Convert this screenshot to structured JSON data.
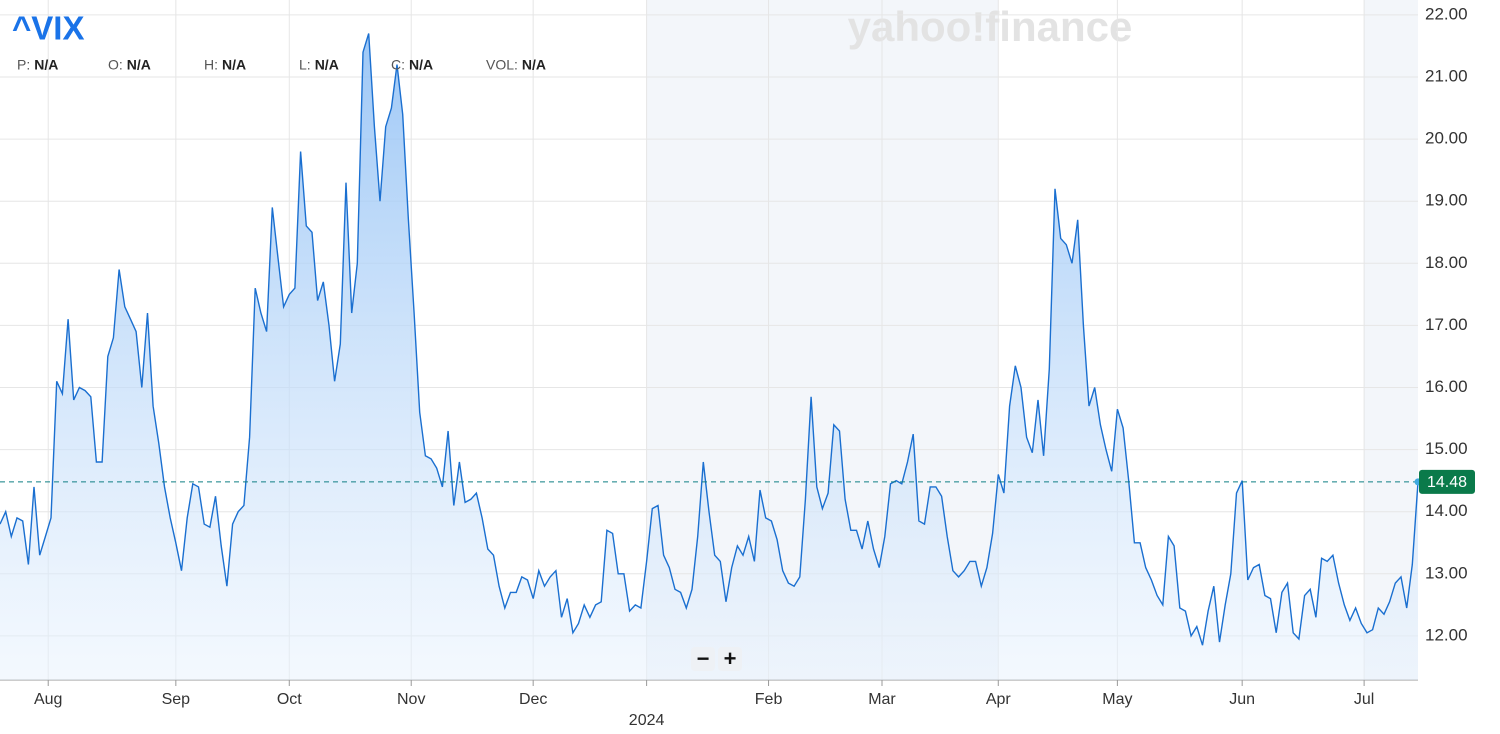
{
  "chart_data": {
    "type": "area",
    "title": "^VIX",
    "watermark": "yahoo!finance",
    "ohlc": [
      {
        "label": "P:",
        "value": "N/A"
      },
      {
        "label": "O:",
        "value": "N/A"
      },
      {
        "label": "H:",
        "value": "N/A"
      },
      {
        "label": "L:",
        "value": "N/A"
      },
      {
        "label": "C:",
        "value": "N/A"
      },
      {
        "label": "VOL:",
        "value": "N/A"
      }
    ],
    "color": "#1a6fd0",
    "values": [
      13.8,
      14.0,
      13.6,
      13.9,
      13.85,
      13.15,
      14.4,
      13.3,
      13.6,
      13.9,
      16.1,
      15.9,
      17.1,
      15.8,
      16.0,
      15.95,
      15.85,
      14.8,
      14.8,
      16.5,
      16.8,
      17.9,
      17.3,
      17.1,
      16.9,
      16.0,
      17.2,
      15.7,
      15.1,
      14.4,
      13.9,
      13.5,
      13.05,
      13.9,
      14.45,
      14.4,
      13.8,
      13.75,
      14.25,
      13.45,
      12.8,
      13.8,
      14.0,
      14.1,
      15.2,
      17.6,
      17.2,
      16.9,
      18.9,
      18.1,
      17.3,
      17.5,
      17.6,
      19.8,
      18.6,
      18.5,
      17.4,
      17.7,
      17.0,
      16.1,
      16.7,
      19.3,
      17.2,
      18.0,
      21.4,
      21.7,
      20.2,
      19.0,
      20.2,
      20.5,
      21.2,
      20.4,
      18.7,
      17.2,
      15.6,
      14.9,
      14.85,
      14.7,
      14.4,
      15.3,
      14.1,
      14.8,
      14.15,
      14.2,
      14.3,
      13.9,
      13.4,
      13.3,
      12.8,
      12.45,
      12.7,
      12.7,
      12.95,
      12.9,
      12.6,
      13.05,
      12.8,
      12.95,
      13.05,
      12.3,
      12.6,
      12.05,
      12.2,
      12.5,
      12.3,
      12.5,
      12.55,
      13.7,
      13.65,
      13.0,
      13.0,
      12.4,
      12.5,
      12.45,
      13.2,
      14.05,
      14.1,
      13.3,
      13.1,
      12.75,
      12.7,
      12.45,
      12.75,
      13.6,
      14.8,
      14.0,
      13.3,
      13.2,
      12.55,
      13.1,
      13.45,
      13.3,
      13.6,
      13.2,
      14.35,
      13.9,
      13.85,
      13.55,
      13.05,
      12.85,
      12.8,
      12.95,
      14.2,
      15.85,
      14.4,
      14.05,
      14.3,
      15.4,
      15.3,
      14.2,
      13.7,
      13.7,
      13.4,
      13.85,
      13.4,
      13.1,
      13.6,
      14.45,
      14.5,
      14.45,
      14.8,
      15.25,
      13.85,
      13.8,
      14.4,
      14.4,
      14.25,
      13.6,
      13.05,
      12.95,
      13.05,
      13.2,
      13.2,
      12.8,
      13.1,
      13.65,
      14.6,
      14.3,
      15.7,
      16.35,
      16.0,
      15.2,
      14.95,
      15.8,
      14.9,
      16.3,
      19.2,
      18.4,
      18.3,
      18.0,
      18.7,
      17.0,
      15.7,
      16.0,
      15.4,
      15.0,
      14.65,
      15.65,
      15.35,
      14.5,
      13.5,
      13.5,
      13.1,
      12.9,
      12.65,
      12.5,
      13.6,
      13.45,
      12.45,
      12.4,
      12.0,
      12.15,
      11.85,
      12.4,
      12.8,
      11.9,
      12.5,
      13.0,
      14.3,
      14.5,
      12.9,
      13.1,
      13.15,
      12.65,
      12.6,
      12.05,
      12.7,
      12.85,
      12.05,
      11.95,
      12.65,
      12.75,
      12.3,
      13.25,
      13.2,
      13.3,
      12.85,
      12.5,
      12.25,
      12.45,
      12.2,
      12.05,
      12.1,
      12.45,
      12.35,
      12.55,
      12.85,
      12.95,
      12.45,
      13.15,
      14.48
    ],
    "last_price": 14.48,
    "xlim": [
      0,
      250
    ],
    "xticks": [
      {
        "value": 8.5,
        "label": "Aug"
      },
      {
        "value": 31,
        "label": "Sep"
      },
      {
        "value": 51,
        "label": "Oct"
      },
      {
        "value": 72.5,
        "label": "Nov"
      },
      {
        "value": 94,
        "label": "Dec"
      },
      {
        "value": 114,
        "label": null
      },
      {
        "value": 135.5,
        "label": "Feb"
      },
      {
        "value": 155.5,
        "label": "Mar"
      },
      {
        "value": 176,
        "label": "Apr"
      },
      {
        "value": 197,
        "label": "May"
      },
      {
        "value": 219,
        "label": "Jun"
      },
      {
        "value": 240.5,
        "label": "Jul"
      }
    ],
    "year_ticks": [
      {
        "value": 114,
        "label": "2024"
      }
    ],
    "ylim": [
      11.29,
      22.24
    ],
    "yticks": [
      {
        "value": 12,
        "label": "12.00"
      },
      {
        "value": 13,
        "label": "13.00"
      },
      {
        "value": 14,
        "label": "14.00"
      },
      {
        "value": 15,
        "label": "15.00"
      },
      {
        "value": 16,
        "label": "16.00"
      },
      {
        "value": 17,
        "label": "17.00"
      },
      {
        "value": 18,
        "label": "18.00"
      },
      {
        "value": 19,
        "label": "19.00"
      },
      {
        "value": 20,
        "label": "20.00"
      },
      {
        "value": 21,
        "label": "21.00"
      },
      {
        "value": 22,
        "label": "22.00"
      }
    ],
    "grid": true,
    "zoom": [
      "−",
      "+"
    ]
  }
}
